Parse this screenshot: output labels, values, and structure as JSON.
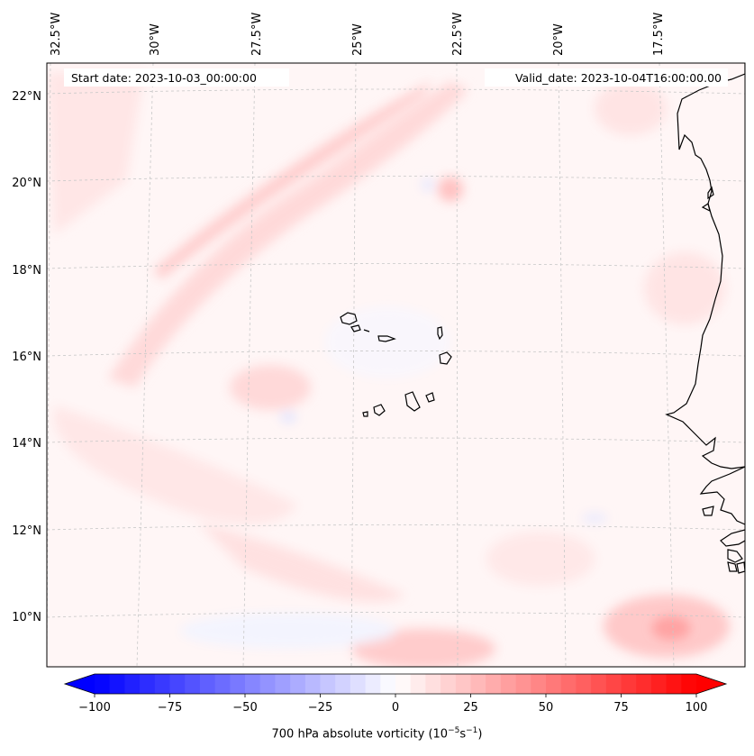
{
  "header": {
    "start_date": "Start date: 2023-10-03_00:00:00",
    "valid_date": "Valid_date: 2023-10-04T16:00:00.00"
  },
  "longitude_labels": [
    "32.5°W",
    "30°W",
    "27.5°W",
    "25°W",
    "22.5°W",
    "20°W",
    "17.5°W"
  ],
  "latitude_labels": [
    "22°N",
    "20°N",
    "18°N",
    "16°N",
    "14°N",
    "12°N",
    "10°N"
  ],
  "colorbar": {
    "ticks": [
      "−100",
      "−75",
      "−50",
      "−25",
      "0",
      "25",
      "50",
      "75",
      "100"
    ],
    "label_main": "700 hPa absolute vorticity (10",
    "label_exp1": "−5",
    "label_mid": "s",
    "label_exp2": "−1",
    "label_end": ")",
    "range": [
      -100,
      100
    ],
    "step": 5,
    "extend": "both",
    "colormap": "bwr"
  },
  "colors": {
    "coastline": "#000000",
    "gridline": "#c8c8c8",
    "positive_max": "#ff0000",
    "negative_max": "#0000ff"
  }
}
